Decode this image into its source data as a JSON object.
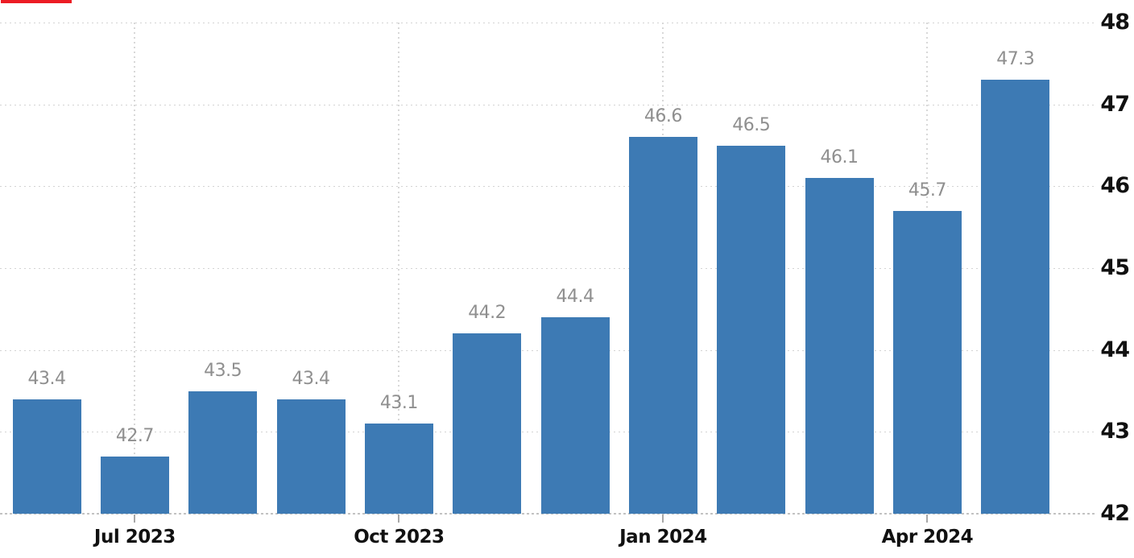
{
  "chart_data": {
    "type": "bar",
    "title": "",
    "xlabel": "",
    "ylabel": "",
    "values": [
      43.4,
      42.7,
      43.5,
      43.4,
      43.1,
      44.2,
      44.4,
      46.6,
      46.5,
      46.1,
      45.7,
      47.3
    ],
    "bar_labels": [
      "43.4",
      "42.7",
      "43.5",
      "43.4",
      "43.1",
      "44.2",
      "44.4",
      "46.6",
      "46.5",
      "46.1",
      "45.7",
      "47.3"
    ],
    "x_tick_labels": [
      "Jul 2023",
      "Oct 2023",
      "Jan 2024",
      "Apr 2024"
    ],
    "x_tick_bar_index": [
      1,
      4,
      7,
      10
    ],
    "y_tick_labels": [
      "48",
      "47",
      "46",
      "45",
      "44",
      "43",
      "42"
    ],
    "y_ticks": [
      48,
      47,
      46,
      45,
      44,
      43,
      42
    ],
    "ylim": [
      42,
      48
    ],
    "y_axis_side": "right",
    "grid": "dotted",
    "legend": "none",
    "colors": {
      "bar": "#3d7ab4",
      "value_label": "#8f8f8f",
      "axis_label": "#111111",
      "gridline": "#d3d3d3",
      "baseline": "#c2c2c2",
      "tick": "#a8a8a8",
      "red_indicator": "#ec1c24",
      "background": "#ffffff"
    }
  }
}
